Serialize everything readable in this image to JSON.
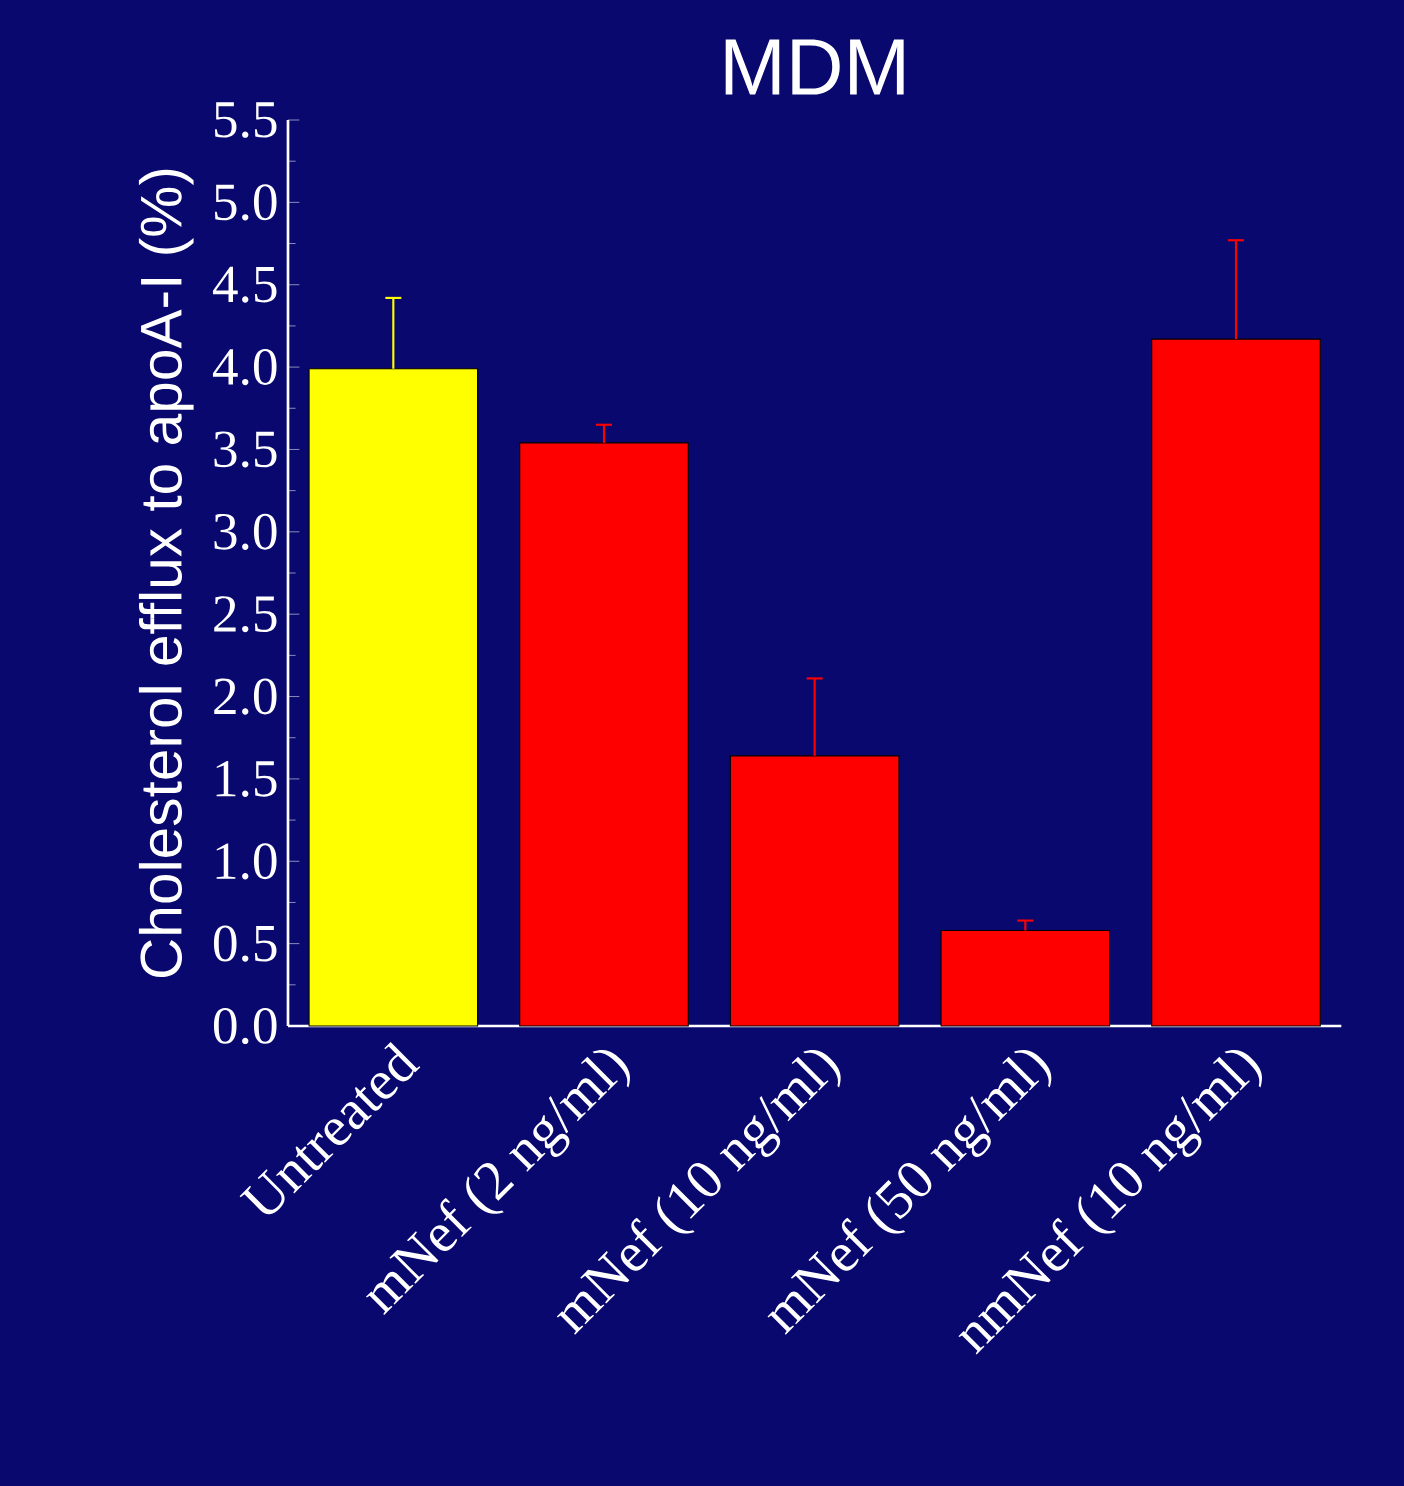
{
  "chart_data": {
    "type": "bar",
    "title": "MDM",
    "ylabel": "Cholesterol efflux to apoA-I (%)",
    "categories": [
      "Untreated",
      "mNef (2 ng/ml)",
      "mNef (10 ng/ml)",
      "mNef (50 ng/ml)",
      "nmNef (10 ng/ml)"
    ],
    "values": [
      3.99,
      3.54,
      1.64,
      0.58,
      4.17
    ],
    "errors": [
      [
        3.99,
        4.42
      ],
      [
        3.54,
        3.65
      ],
      [
        1.64,
        2.11
      ],
      [
        0.58,
        0.64
      ],
      [
        4.17,
        4.77
      ]
    ],
    "colors": [
      "#ffff00",
      "#ff0000",
      "#ff0000",
      "#ff0000",
      "#ff0000"
    ],
    "ylim": [
      0,
      5.5
    ],
    "yticks": [
      {
        "value": 0,
        "label": "0.0"
      },
      {
        "value": 0.5,
        "label": "0.5"
      },
      {
        "value": 1,
        "label": "1.0"
      },
      {
        "value": 1.5,
        "label": "1.5"
      },
      {
        "value": 2,
        "label": "2.0"
      },
      {
        "value": 2.5,
        "label": "2.5"
      },
      {
        "value": 3,
        "label": "3.0"
      },
      {
        "value": 3.5,
        "label": "3.5"
      },
      {
        "value": 4,
        "label": "4.0"
      },
      {
        "value": 4.5,
        "label": "4.5"
      },
      {
        "value": 5,
        "label": "5.0"
      },
      {
        "value": 5.5,
        "label": "5.5"
      }
    ]
  }
}
